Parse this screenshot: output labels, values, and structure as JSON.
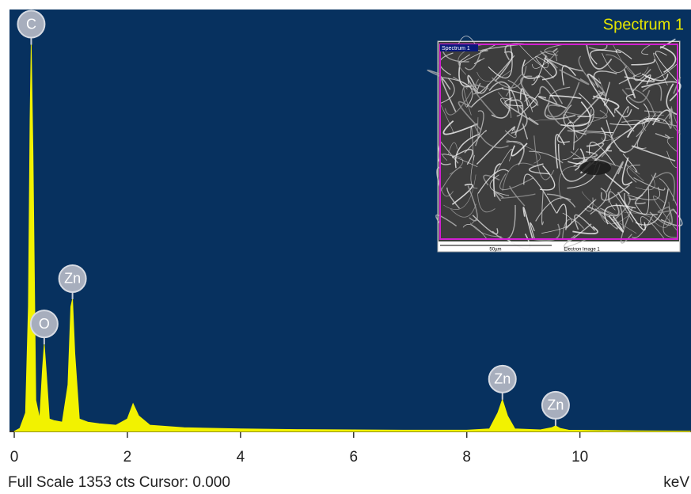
{
  "chart_data": {
    "type": "spectrum",
    "title": "Spectrum 1",
    "x": [
      0,
      0.1,
      0.2,
      0.25,
      0.28,
      0.3,
      0.33,
      0.38,
      0.45,
      0.5,
      0.53,
      0.57,
      0.62,
      0.7,
      0.85,
      0.95,
      1.0,
      1.03,
      1.07,
      1.15,
      1.3,
      1.5,
      1.8,
      2.0,
      2.1,
      2.2,
      2.4,
      3,
      4,
      5,
      6,
      7,
      8,
      8.4,
      8.55,
      8.63,
      8.72,
      8.85,
      9.3,
      9.5,
      9.57,
      9.65,
      9.8,
      11,
      11.95
    ],
    "values": [
      0,
      10,
      60,
      400,
      1000,
      1240,
      900,
      100,
      40,
      200,
      279,
      180,
      40,
      35,
      30,
      150,
      400,
      424,
      250,
      40,
      30,
      25,
      20,
      40,
      89,
      50,
      20,
      12,
      8,
      6,
      5,
      4,
      4,
      8,
      60,
      102,
      50,
      8,
      5,
      12,
      18,
      10,
      4,
      2,
      1
    ],
    "color": "#f2f200",
    "background": "#07315f",
    "xlim": [
      0,
      11.95
    ],
    "ylim": [
      0,
      1353
    ],
    "xticks": [
      0,
      2,
      4,
      6,
      8,
      10
    ],
    "peak_labels": [
      {
        "label": "C",
        "x": 0.3
      },
      {
        "label": "O",
        "x": 0.53
      },
      {
        "label": "Zn",
        "x": 1.03
      },
      {
        "label": "Zn",
        "x": 8.63
      },
      {
        "label": "Zn",
        "x": 9.57
      }
    ],
    "footer": "Full Scale 1353 cts Cursor: 0.000",
    "x_unit": "keV",
    "inset": {
      "label": "Spectrum 1",
      "scale": "50µm",
      "caption": "Electron Image 1"
    }
  }
}
